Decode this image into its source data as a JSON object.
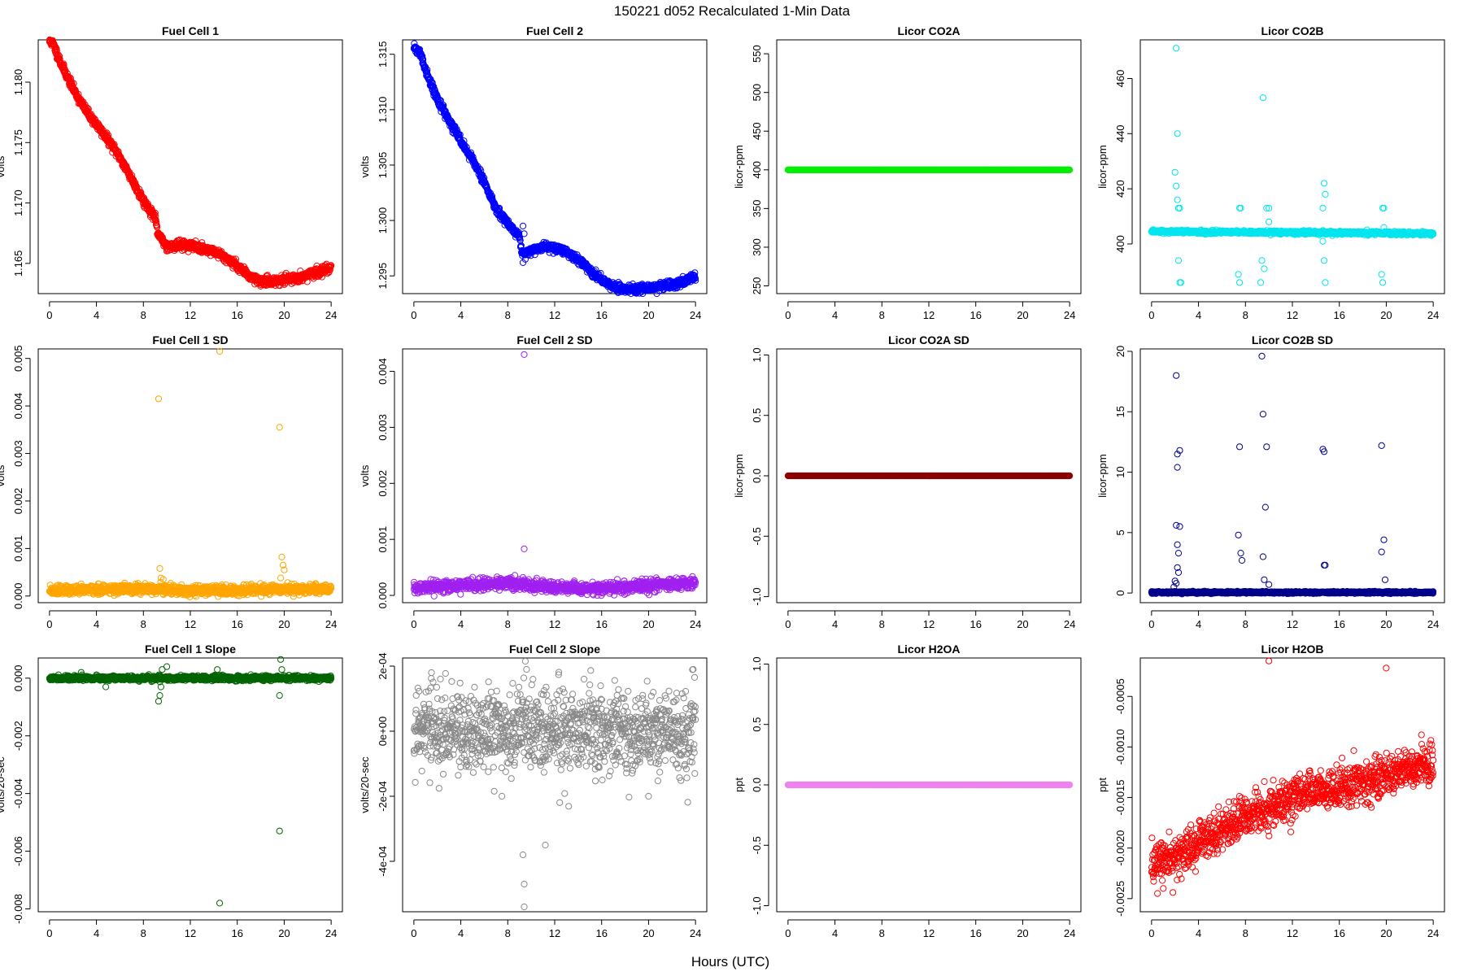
{
  "figure": {
    "title": "150221   d052   Recalculated 1-Min Data",
    "xlabel": "Hours (UTC)"
  },
  "chart_data": [
    {
      "type": "scatter",
      "title": "Fuel Cell 1",
      "ylabel": "volts",
      "color": "#ff0000",
      "xlim": [
        0,
        24
      ],
      "xticks": [
        0,
        4,
        8,
        12,
        16,
        20,
        24
      ],
      "ylim": [
        1.1625,
        1.1835
      ],
      "yticks": [
        1.165,
        1.17,
        1.175,
        1.18
      ],
      "ytick_labels": [
        "1.165",
        "1.170",
        "1.175",
        "1.180"
      ],
      "anchors": [
        [
          0,
          1.1834
        ],
        [
          0.3,
          1.1832
        ],
        [
          1,
          1.1815
        ],
        [
          2,
          1.1795
        ],
        [
          3,
          1.1778
        ],
        [
          4,
          1.1765
        ],
        [
          5,
          1.1752
        ],
        [
          6,
          1.1738
        ],
        [
          7,
          1.172
        ],
        [
          8,
          1.1702
        ],
        [
          9,
          1.1688
        ],
        [
          9.2,
          1.1675
        ],
        [
          10,
          1.1664
        ],
        [
          11,
          1.1665
        ],
        [
          12,
          1.1665
        ],
        [
          13,
          1.1662
        ],
        [
          14,
          1.166
        ],
        [
          15,
          1.1655
        ],
        [
          16,
          1.1648
        ],
        [
          17,
          1.164
        ],
        [
          18,
          1.1635
        ],
        [
          20,
          1.1636
        ],
        [
          22,
          1.164
        ],
        [
          23,
          1.1643
        ],
        [
          24,
          1.1647
        ]
      ],
      "noise": 0.00018,
      "seed": 11,
      "outliers": []
    },
    {
      "type": "scatter",
      "title": "Fuel Cell 2",
      "ylabel": "volts",
      "color": "#0000ff",
      "xlim": [
        0,
        24
      ],
      "xticks": [
        0,
        4,
        8,
        12,
        16,
        20,
        24
      ],
      "ylim": [
        1.2934,
        1.3163
      ],
      "yticks": [
        1.295,
        1.3,
        1.305,
        1.31,
        1.315
      ],
      "ytick_labels": [
        "1.295",
        "1.300",
        "1.305",
        "1.310",
        "1.315"
      ],
      "anchors": [
        [
          0,
          1.3156
        ],
        [
          0.5,
          1.3152
        ],
        [
          1,
          1.3135
        ],
        [
          2,
          1.311
        ],
        [
          3,
          1.309
        ],
        [
          4,
          1.3072
        ],
        [
          5,
          1.3055
        ],
        [
          6,
          1.3035
        ],
        [
          7,
          1.301
        ],
        [
          8,
          1.2998
        ],
        [
          9,
          1.2985
        ],
        [
          9.2,
          1.297
        ],
        [
          10,
          1.2972
        ],
        [
          11,
          1.2976
        ],
        [
          12,
          1.2975
        ],
        [
          13,
          1.2972
        ],
        [
          14,
          1.2965
        ],
        [
          15,
          1.2955
        ],
        [
          16,
          1.2947
        ],
        [
          17,
          1.294
        ],
        [
          18,
          1.2938
        ],
        [
          20,
          1.2939
        ],
        [
          22,
          1.2942
        ],
        [
          23,
          1.2945
        ],
        [
          24,
          1.295
        ]
      ],
      "noise": 0.00018,
      "seed": 22,
      "outliers": [
        [
          9.3,
          1.2995
        ],
        [
          9.3,
          1.2962
        ],
        [
          9.4,
          1.2988
        ],
        [
          9.5,
          1.2965
        ]
      ]
    },
    {
      "type": "scatter",
      "title": "Licor CO2A",
      "ylabel": "licor-ppm",
      "color": "#00ee00",
      "xlim": [
        0,
        24
      ],
      "xticks": [
        0,
        4,
        8,
        12,
        16,
        20,
        24
      ],
      "ylim": [
        240,
        568
      ],
      "yticks": [
        250,
        300,
        350,
        400,
        450,
        500,
        550
      ],
      "ytick_labels": [
        "250",
        "300",
        "350",
        "400",
        "450",
        "500",
        "550"
      ],
      "anchors": [
        [
          0,
          400
        ],
        [
          24,
          400
        ]
      ],
      "noise": 0,
      "seed": 33,
      "outliers": []
    },
    {
      "type": "scatter",
      "title": "Licor CO2B",
      "ylabel": "licor-ppm",
      "color": "#00e5ee",
      "xlim": [
        0,
        24
      ],
      "xticks": [
        0,
        4,
        8,
        12,
        16,
        20,
        24
      ],
      "ylim": [
        382,
        474
      ],
      "yticks": [
        400,
        420,
        440,
        460
      ],
      "ytick_labels": [
        "400",
        "420",
        "440",
        "460"
      ],
      "anchors": [
        [
          0,
          404.5
        ],
        [
          24,
          403.8
        ]
      ],
      "noise": 0.3,
      "seed": 44,
      "outliers": [
        [
          2.1,
          471
        ],
        [
          2.2,
          440
        ],
        [
          2.0,
          426
        ],
        [
          2.1,
          421
        ],
        [
          2.2,
          416
        ],
        [
          2.3,
          413
        ],
        [
          2.4,
          413
        ],
        [
          2.3,
          394
        ],
        [
          2.4,
          386
        ],
        [
          2.5,
          386
        ],
        [
          7.5,
          413
        ],
        [
          7.6,
          413
        ],
        [
          7.4,
          389
        ],
        [
          7.5,
          386
        ],
        [
          9.5,
          453
        ],
        [
          9.4,
          394
        ],
        [
          9.3,
          386
        ],
        [
          9.6,
          391
        ],
        [
          9.8,
          413
        ],
        [
          10,
          413
        ],
        [
          10,
          408
        ],
        [
          14.7,
          422
        ],
        [
          14.8,
          418
        ],
        [
          14.6,
          413
        ],
        [
          14.7,
          394
        ],
        [
          14.8,
          386
        ],
        [
          14.6,
          401
        ],
        [
          19.7,
          413
        ],
        [
          19.8,
          413
        ],
        [
          19.6,
          389
        ],
        [
          19.7,
          386
        ],
        [
          19.8,
          406
        ]
      ]
    },
    {
      "type": "scatter",
      "title": "Fuel Cell 1 SD",
      "ylabel": "volts",
      "color": "#ffa500",
      "xlim": [
        0,
        24
      ],
      "xticks": [
        0,
        4,
        8,
        12,
        16,
        20,
        24
      ],
      "ylim": [
        -0.00014,
        0.0052
      ],
      "yticks": [
        0,
        0.001,
        0.002,
        0.003,
        0.004,
        0.005
      ],
      "ytick_labels": [
        "0.000",
        "0.001",
        "0.002",
        "0.003",
        "0.004",
        "0.005"
      ],
      "anchors": [
        [
          0,
          0.00011
        ],
        [
          8,
          0.00016
        ],
        [
          12,
          0.00012
        ],
        [
          16,
          0.00012
        ],
        [
          24,
          0.00015
        ]
      ],
      "noise": 5e-05,
      "seed": 55,
      "outliers": [
        [
          9.3,
          0.00415
        ],
        [
          14.5,
          0.00515
        ],
        [
          19.6,
          0.00355
        ],
        [
          9.4,
          0.00058
        ],
        [
          9.5,
          0.00038
        ],
        [
          9.7,
          0.00035
        ],
        [
          19.8,
          0.00082
        ],
        [
          19.9,
          0.00065
        ],
        [
          20.0,
          0.00055
        ],
        [
          19.7,
          0.00038
        ]
      ]
    },
    {
      "type": "scatter",
      "title": "Fuel Cell 2 SD",
      "ylabel": "volts",
      "color": "#a020f0",
      "xlim": [
        0,
        24
      ],
      "xticks": [
        0,
        4,
        8,
        12,
        16,
        20,
        24
      ],
      "ylim": [
        -0.00013,
        0.0044
      ],
      "yticks": [
        0,
        0.001,
        0.002,
        0.003,
        0.004
      ],
      "ytick_labels": [
        "0.000",
        "0.001",
        "0.002",
        "0.003",
        "0.004"
      ],
      "anchors": [
        [
          0,
          0.00012
        ],
        [
          4,
          0.00018
        ],
        [
          8,
          0.00022
        ],
        [
          12,
          0.00013
        ],
        [
          16,
          0.00012
        ],
        [
          20,
          0.00018
        ],
        [
          24,
          0.00022
        ]
      ],
      "noise": 5e-05,
      "seed": 66,
      "outliers": [
        [
          9.4,
          0.0043
        ],
        [
          9.4,
          0.00083
        ],
        [
          9.3,
          0.00032
        ]
      ]
    },
    {
      "type": "scatter",
      "title": "Licor CO2A SD",
      "ylabel": "licor-ppm",
      "color": "#8b0000",
      "xlim": [
        0,
        24
      ],
      "xticks": [
        0,
        4,
        8,
        12,
        16,
        20,
        24
      ],
      "ylim": [
        -1.05,
        1.05
      ],
      "yticks": [
        -1,
        -0.5,
        0,
        0.5,
        1
      ],
      "ytick_labels": [
        "-1.0",
        "-0.5",
        "0.0",
        "0.5",
        "1.0"
      ],
      "anchors": [
        [
          0,
          0
        ],
        [
          24,
          0
        ]
      ],
      "noise": 0,
      "seed": 77,
      "outliers": []
    },
    {
      "type": "scatter",
      "title": "Licor CO2B SD",
      "ylabel": "licor-ppm",
      "color": "#00008b",
      "xlim": [
        0,
        24
      ],
      "xticks": [
        0,
        4,
        8,
        12,
        16,
        20,
        24
      ],
      "ylim": [
        -0.8,
        20.2
      ],
      "yticks": [
        0,
        5,
        10,
        15,
        20
      ],
      "ytick_labels": [
        "0",
        "5",
        "10",
        "15",
        "20"
      ],
      "anchors": [
        [
          0,
          0.05
        ],
        [
          24,
          0.05
        ]
      ],
      "noise": 0.04,
      "seed": 88,
      "outliers": [
        [
          2.1,
          18.0
        ],
        [
          2.2,
          11.5
        ],
        [
          2.4,
          11.8
        ],
        [
          2.2,
          10.4
        ],
        [
          2.1,
          5.6
        ],
        [
          2.4,
          5.5
        ],
        [
          2.2,
          4.0
        ],
        [
          2.3,
          3.3
        ],
        [
          2.2,
          2.1
        ],
        [
          2.3,
          1.7
        ],
        [
          2.0,
          1.0
        ],
        [
          2.1,
          0.8
        ],
        [
          1.9,
          0.5
        ],
        [
          7.4,
          4.8
        ],
        [
          7.5,
          12.1
        ],
        [
          7.6,
          3.3
        ],
        [
          7.7,
          2.7
        ],
        [
          9.4,
          19.6
        ],
        [
          9.5,
          14.8
        ],
        [
          9.8,
          12.1
        ],
        [
          9.7,
          7.1
        ],
        [
          9.5,
          3.0
        ],
        [
          9.6,
          1.1
        ],
        [
          10.0,
          0.7
        ],
        [
          14.6,
          11.9
        ],
        [
          14.7,
          11.7
        ],
        [
          14.8,
          2.3
        ],
        [
          14.7,
          2.3
        ],
        [
          19.6,
          12.2
        ],
        [
          19.6,
          3.4
        ],
        [
          19.8,
          4.4
        ],
        [
          19.9,
          1.1
        ]
      ]
    },
    {
      "type": "scatter",
      "title": "Fuel Cell 1 Slope",
      "ylabel": "volts/20-sec",
      "color": "#006400",
      "xlim": [
        0,
        24
      ],
      "xticks": [
        0,
        4,
        8,
        12,
        16,
        20,
        24
      ],
      "ylim": [
        -0.0081,
        0.0007
      ],
      "yticks": [
        -0.008,
        -0.006,
        -0.004,
        -0.002,
        0
      ],
      "ytick_labels": [
        "-0.008",
        "-0.006",
        "-0.004",
        "-0.002",
        "0.000"
      ],
      "anchors": [
        [
          0,
          0
        ],
        [
          24,
          0
        ]
      ],
      "noise": 4e-05,
      "seed": 99,
      "outliers": [
        [
          14.5,
          -0.0078
        ],
        [
          19.6,
          -0.0053
        ],
        [
          19.7,
          0.00065
        ],
        [
          19.6,
          -0.0006
        ],
        [
          9.4,
          -0.0006
        ],
        [
          9.3,
          -0.0008
        ],
        [
          9.6,
          0.0003
        ],
        [
          10.0,
          0.0004
        ],
        [
          9.5,
          -0.0003
        ],
        [
          4.8,
          -0.0003
        ],
        [
          2.7,
          0.0002
        ],
        [
          14.3,
          0.0003
        ],
        [
          19.8,
          0.0003
        ]
      ]
    },
    {
      "type": "scatter",
      "title": "Fuel Cell 2 Slope",
      "ylabel": "volts/20-sec",
      "color": "#888888",
      "xlim": [
        0,
        24
      ],
      "xticks": [
        0,
        4,
        8,
        12,
        16,
        20,
        24
      ],
      "ylim": [
        -0.000555,
        0.000225
      ],
      "yticks": [
        -0.0004,
        -0.0002,
        0,
        0.0002
      ],
      "ytick_labels": [
        "-4e-04",
        "-2e-04",
        "0e+00",
        "2e-04"
      ],
      "anchors": [
        [
          0,
          0
        ],
        [
          24,
          0
        ]
      ],
      "noise": 6.5e-05,
      "seed": 111,
      "outliers": [
        [
          9.4,
          -0.00054
        ],
        [
          9.4,
          -0.00047
        ],
        [
          9.3,
          -0.00038
        ],
        [
          11.2,
          -0.00035
        ],
        [
          9.5,
          0.000215
        ],
        [
          9.6,
          0.00019
        ],
        [
          7.5,
          -0.0002
        ],
        [
          1.5,
          0.00018
        ],
        [
          23.8,
          0.00019
        ],
        [
          14.5,
          0.00016
        ],
        [
          20.0,
          -0.0002
        ]
      ]
    },
    {
      "type": "scatter",
      "title": "Licor H2OA",
      "ylabel": "ppt",
      "color": "#ee82ee",
      "xlim": [
        0,
        24
      ],
      "xticks": [
        0,
        4,
        8,
        12,
        16,
        20,
        24
      ],
      "ylim": [
        -1.05,
        1.05
      ],
      "yticks": [
        -1,
        -0.5,
        0,
        0.5,
        1
      ],
      "ytick_labels": [
        "-1.0",
        "-0.5",
        "0.0",
        "0.5",
        "1.0"
      ],
      "anchors": [
        [
          0,
          0
        ],
        [
          24,
          0
        ]
      ],
      "noise": 0,
      "seed": 122,
      "outliers": []
    },
    {
      "type": "scatter",
      "title": "Licor H2OB",
      "ylabel": "ppt",
      "color": "#ff0000",
      "xlim": [
        0,
        24
      ],
      "xticks": [
        0,
        4,
        8,
        12,
        16,
        20,
        24
      ],
      "ylim": [
        -0.00263,
        -0.00012
      ],
      "yticks": [
        -0.0025,
        -0.002,
        -0.0015,
        -0.001,
        -0.0005
      ],
      "ytick_labels": [
        "-0.0025",
        "-0.0020",
        "-0.0015",
        "-0.0010",
        "-0.0005"
      ],
      "anchors": [
        [
          0,
          -0.00215
        ],
        [
          2,
          -0.00208
        ],
        [
          4,
          -0.00195
        ],
        [
          6,
          -0.00182
        ],
        [
          8,
          -0.0017
        ],
        [
          10,
          -0.0016
        ],
        [
          12,
          -0.0015
        ],
        [
          14,
          -0.00142
        ],
        [
          16,
          -0.0014
        ],
        [
          18,
          -0.00135
        ],
        [
          20,
          -0.00128
        ],
        [
          22,
          -0.0012
        ],
        [
          24,
          -0.00118
        ]
      ],
      "noise": 0.0001,
      "seed": 133,
      "outliers": [
        [
          10.0,
          -0.00015
        ],
        [
          20.0,
          -0.00022
        ],
        [
          0.5,
          -0.00245
        ],
        [
          1.0,
          -0.0024
        ],
        [
          23.0,
          -0.00088
        ]
      ]
    }
  ]
}
